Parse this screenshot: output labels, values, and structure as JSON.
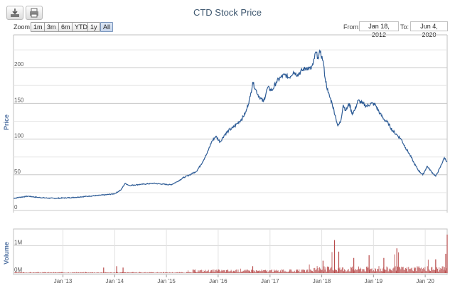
{
  "chart_data": {
    "type": "line",
    "title": "CTD Stock Price",
    "toolbar": {
      "export_icon": "download-icon",
      "print_icon": "print-icon"
    },
    "zoom": {
      "label": "Zoom",
      "options": [
        "1m",
        "3m",
        "6m",
        "YTD",
        "1y",
        "All"
      ],
      "selected": "All"
    },
    "range": {
      "from_label": "From:",
      "from_value": "Jan 18, 2012",
      "to_label": "To:",
      "to_value": "Jun 4, 2020"
    },
    "price": {
      "ylabel": "Price",
      "ylim": [
        0,
        240
      ],
      "yticks": [
        0,
        50,
        100,
        150,
        200
      ],
      "series": [
        {
          "name": "CTD",
          "color": "#2f5d97",
          "points": [
            [
              "2012-01-18",
              17
            ],
            [
              "2012-03-01",
              18.5
            ],
            [
              "2012-05-01",
              20
            ],
            [
              "2012-07-01",
              18.5
            ],
            [
              "2012-09-01",
              17.5
            ],
            [
              "2012-11-01",
              17
            ],
            [
              "2013-01-01",
              17.5
            ],
            [
              "2013-03-01",
              18
            ],
            [
              "2013-05-01",
              19
            ],
            [
              "2013-07-01",
              20
            ],
            [
              "2013-09-01",
              21
            ],
            [
              "2013-11-01",
              22
            ],
            [
              "2014-01-01",
              23.5
            ],
            [
              "2014-02-15",
              29
            ],
            [
              "2014-03-15",
              38
            ],
            [
              "2014-04-15",
              35
            ],
            [
              "2014-06-01",
              36
            ],
            [
              "2014-08-01",
              37
            ],
            [
              "2014-10-01",
              38
            ],
            [
              "2014-12-01",
              37
            ],
            [
              "2015-02-01",
              36
            ],
            [
              "2015-03-15",
              40
            ],
            [
              "2015-05-01",
              46
            ],
            [
              "2015-06-15",
              50
            ],
            [
              "2015-08-01",
              55
            ],
            [
              "2015-09-01",
              64
            ],
            [
              "2015-10-15",
              80
            ],
            [
              "2015-11-15",
              96
            ],
            [
              "2015-12-15",
              104
            ],
            [
              "2016-01-15",
              96
            ],
            [
              "2016-02-15",
              106
            ],
            [
              "2016-03-15",
              112
            ],
            [
              "2016-04-15",
              116
            ],
            [
              "2016-05-15",
              122
            ],
            [
              "2016-06-15",
              128
            ],
            [
              "2016-07-15",
              138
            ],
            [
              "2016-08-15",
              160
            ],
            [
              "2016-09-01",
              180
            ],
            [
              "2016-09-20",
              170
            ],
            [
              "2016-10-15",
              160
            ],
            [
              "2016-11-15",
              152
            ],
            [
              "2016-12-15",
              172
            ],
            [
              "2017-01-15",
              168
            ],
            [
              "2017-02-15",
              180
            ],
            [
              "2017-03-15",
              186
            ],
            [
              "2017-04-15",
              190
            ],
            [
              "2017-05-15",
              186
            ],
            [
              "2017-06-15",
              194
            ],
            [
              "2017-07-15",
              190
            ],
            [
              "2017-08-15",
              196
            ],
            [
              "2017-09-15",
              200
            ],
            [
              "2017-10-15",
              198
            ],
            [
              "2017-11-01",
              205
            ],
            [
              "2017-11-20",
              222
            ],
            [
              "2017-12-05",
              214
            ],
            [
              "2017-12-20",
              222
            ],
            [
              "2018-01-10",
              210
            ],
            [
              "2018-01-25",
              185
            ],
            [
              "2018-02-15",
              165
            ],
            [
              "2018-03-15",
              150
            ],
            [
              "2018-04-10",
              130
            ],
            [
              "2018-04-25",
              118
            ],
            [
              "2018-05-15",
              125
            ],
            [
              "2018-06-01",
              148
            ],
            [
              "2018-06-20",
              140
            ],
            [
              "2018-07-15",
              150
            ],
            [
              "2018-08-01",
              136
            ],
            [
              "2018-08-20",
              140
            ],
            [
              "2018-09-15",
              154
            ],
            [
              "2018-10-15",
              150
            ],
            [
              "2018-11-15",
              146
            ],
            [
              "2018-12-15",
              150
            ],
            [
              "2019-01-15",
              148
            ],
            [
              "2019-02-15",
              136
            ],
            [
              "2019-03-15",
              128
            ],
            [
              "2019-04-15",
              122
            ],
            [
              "2019-05-15",
              112
            ],
            [
              "2019-06-15",
              106
            ],
            [
              "2019-07-15",
              100
            ],
            [
              "2019-08-15",
              88
            ],
            [
              "2019-09-15",
              78
            ],
            [
              "2019-10-15",
              66
            ],
            [
              "2019-11-15",
              56
            ],
            [
              "2019-12-15",
              50
            ],
            [
              "2020-01-15",
              62
            ],
            [
              "2020-02-15",
              54
            ],
            [
              "2020-03-15",
              48
            ],
            [
              "2020-04-15",
              60
            ],
            [
              "2020-05-15",
              74
            ],
            [
              "2020-06-04",
              68
            ]
          ]
        }
      ]
    },
    "volume": {
      "ylabel": "Volume",
      "ylim": [
        0,
        1500000
      ],
      "yticks": [
        0,
        1000000
      ],
      "ytick_labels": [
        "0M",
        "1M"
      ],
      "color": "#b84a4a",
      "spikes": [
        [
          "2013-10-15",
          200000
        ],
        [
          "2014-01-15",
          250000
        ],
        [
          "2014-03-01",
          200000
        ],
        [
          "2016-09-01",
          250000
        ],
        [
          "2018-01-10",
          450000
        ],
        [
          "2018-04-01",
          1200000
        ],
        [
          "2018-05-01",
          780000
        ],
        [
          "2018-08-15",
          550000
        ],
        [
          "2018-12-01",
          650000
        ],
        [
          "2019-03-15",
          550000
        ],
        [
          "2019-06-15",
          900000
        ],
        [
          "2020-03-15",
          500000
        ],
        [
          "2020-05-25",
          700000
        ],
        [
          "2020-06-04",
          1400000
        ]
      ]
    },
    "xaxis": {
      "ticks": [
        "2013-01-01",
        "2014-01-01",
        "2015-01-01",
        "2016-01-01",
        "2017-01-01",
        "2018-01-01",
        "2019-01-01",
        "2020-01-01"
      ],
      "tick_labels": [
        "Jan '13",
        "Jan '14",
        "Jan '15",
        "Jan '16",
        "Jan '17",
        "Jan '18",
        "Jan '19",
        "Jan '20"
      ],
      "min": "2012-01-18",
      "max": "2020-06-04"
    },
    "grid": true
  }
}
